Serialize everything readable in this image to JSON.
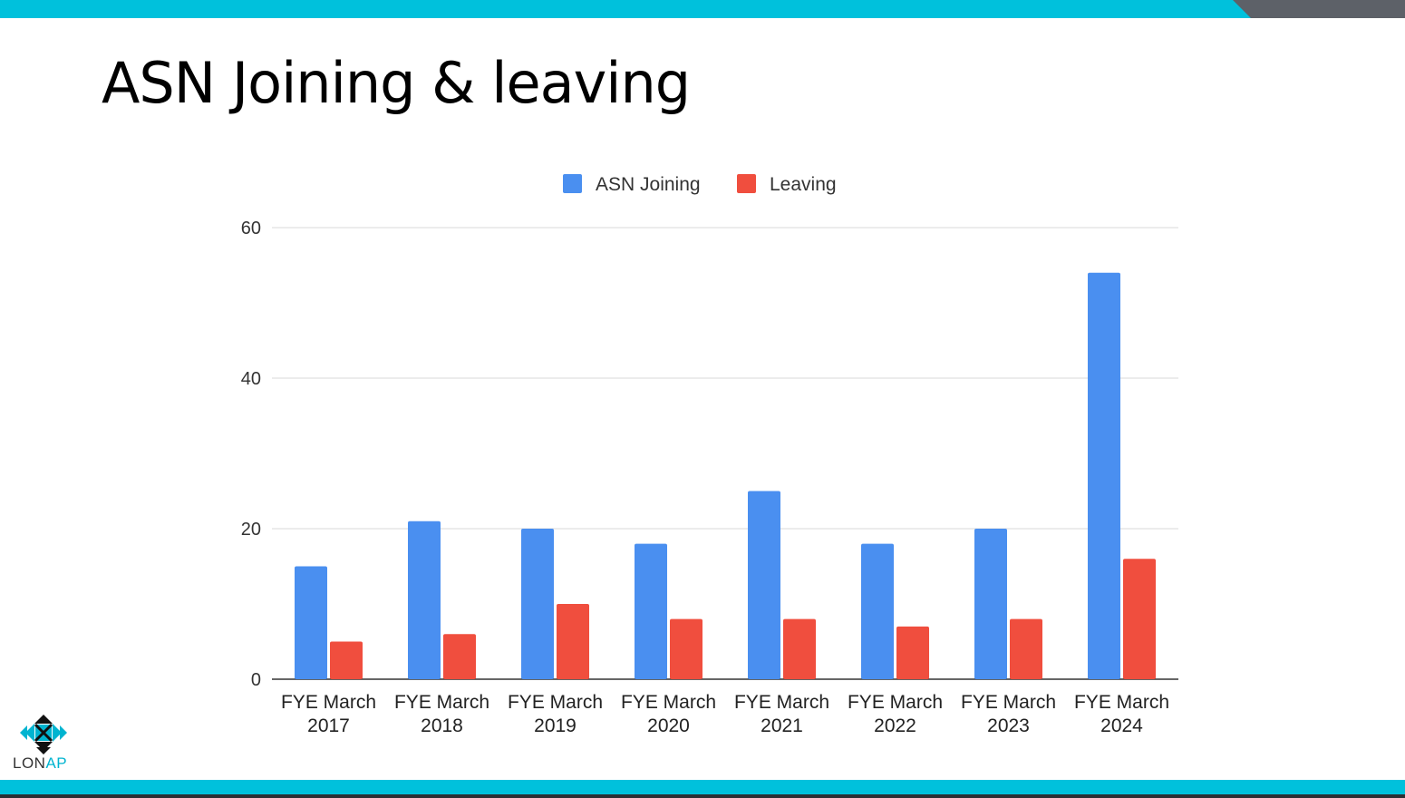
{
  "slide": {
    "title": "ASN Joining & leaving",
    "logo_text_a": "LON",
    "logo_text_b": "AP"
  },
  "colors": {
    "accent": "#00c1dc",
    "joining": "#4a8ff0",
    "leaving": "#f04e3e"
  },
  "chart_data": {
    "type": "bar",
    "title": "",
    "xlabel": "",
    "ylabel": "",
    "ylim": [
      0,
      60
    ],
    "yticks": [
      0,
      20,
      40,
      60
    ],
    "grid": true,
    "legend_position": "top-center",
    "categories": [
      [
        "FYE March",
        "2017"
      ],
      [
        "FYE March",
        "2018"
      ],
      [
        "FYE March",
        "2019"
      ],
      [
        "FYE March",
        "2020"
      ],
      [
        "FYE March",
        "2021"
      ],
      [
        "FYE March",
        "2022"
      ],
      [
        "FYE March",
        "2023"
      ],
      [
        "FYE March",
        "2024"
      ]
    ],
    "series": [
      {
        "name": "ASN Joining",
        "color": "#4a8ff0",
        "values": [
          15,
          21,
          20,
          18,
          25,
          18,
          20,
          54
        ]
      },
      {
        "name": "Leaving",
        "color": "#f04e3e",
        "values": [
          5,
          6,
          10,
          8,
          8,
          7,
          8,
          16
        ]
      }
    ]
  }
}
